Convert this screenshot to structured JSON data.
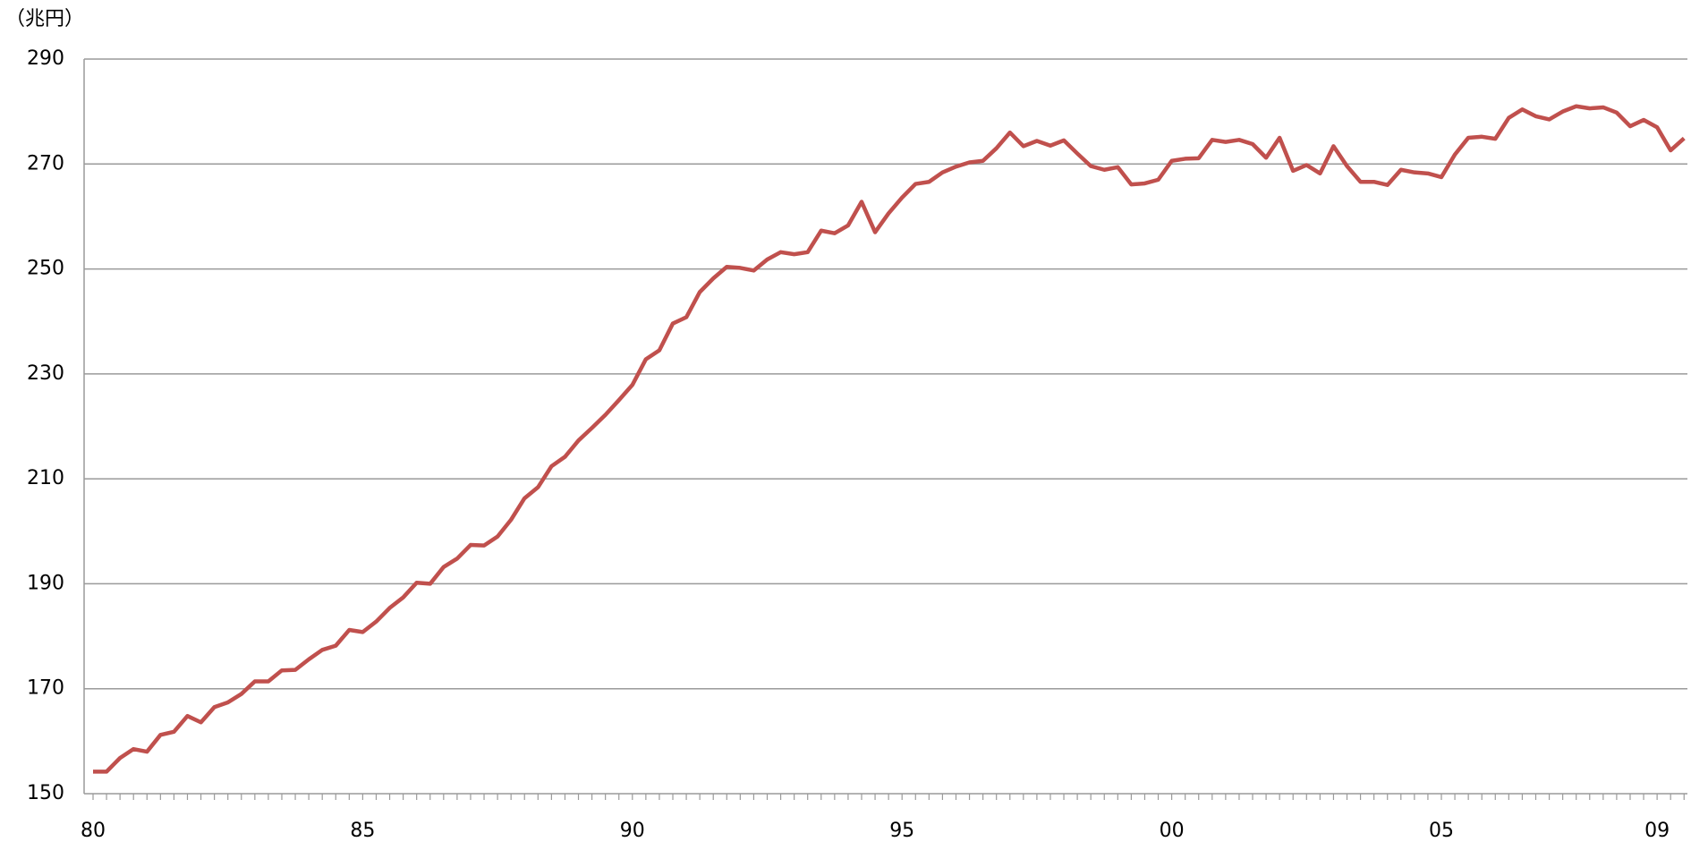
{
  "chart_data": {
    "type": "line",
    "y_label": "（兆円）",
    "categories": [
      "80",
      null,
      null,
      null,
      null,
      null,
      null,
      null,
      null,
      null,
      null,
      null,
      null,
      null,
      null,
      null,
      null,
      null,
      null,
      null,
      "85",
      null,
      null,
      null,
      null,
      null,
      null,
      null,
      null,
      null,
      null,
      null,
      null,
      null,
      null,
      null,
      null,
      null,
      null,
      null,
      "90",
      null,
      null,
      null,
      null,
      null,
      null,
      null,
      null,
      null,
      null,
      null,
      null,
      null,
      null,
      null,
      null,
      null,
      null,
      null,
      "95",
      null,
      null,
      null,
      null,
      null,
      null,
      null,
      null,
      null,
      null,
      null,
      null,
      null,
      null,
      null,
      null,
      null,
      null,
      null,
      "00",
      null,
      null,
      null,
      null,
      null,
      null,
      null,
      null,
      null,
      null,
      null,
      null,
      null,
      null,
      null,
      null,
      null,
      null,
      null,
      "05",
      null,
      null,
      null,
      null,
      null,
      null,
      null,
      null,
      null,
      null,
      null,
      null,
      null,
      null,
      null,
      "09",
      null,
      null
    ],
    "values": [
      154.2,
      154.2,
      156.8,
      158.5,
      158.0,
      161.2,
      161.8,
      164.8,
      163.6,
      166.5,
      167.4,
      169.0,
      171.4,
      171.4,
      173.5,
      173.6,
      175.6,
      177.4,
      178.2,
      181.2,
      180.8,
      182.8,
      185.4,
      187.4,
      190.2,
      190.0,
      193.2,
      194.8,
      197.4,
      197.3,
      199.0,
      202.2,
      206.3,
      208.4,
      212.4,
      214.2,
      217.3,
      219.7,
      222.2,
      225.0,
      227.9,
      232.8,
      234.5,
      239.6,
      240.8,
      245.6,
      248.2,
      250.4,
      250.2,
      249.7,
      251.8,
      253.2,
      252.8,
      253.2,
      257.3,
      256.8,
      258.3,
      262.8,
      257.0,
      260.6,
      263.6,
      266.2,
      266.6,
      268.4,
      269.5,
      270.3,
      270.6,
      273.0,
      276.0,
      273.4,
      274.4,
      273.5,
      274.5,
      272.0,
      269.6,
      268.9,
      269.4,
      266.1,
      266.3,
      267.0,
      270.6,
      271.0,
      271.1,
      274.6,
      274.2,
      274.6,
      273.8,
      271.2,
      275.0,
      268.7,
      269.8,
      268.2,
      273.4,
      269.6,
      266.6,
      266.6,
      266.0,
      268.9,
      268.4,
      268.2,
      267.5,
      271.8,
      275.0,
      275.2,
      274.8,
      278.8,
      280.4,
      279.1,
      278.5,
      280.0,
      281.0,
      280.6,
      280.8,
      279.8,
      277.2,
      278.4,
      277.0,
      272.6,
      274.9
    ],
    "color": "#c0504d",
    "ylim": [
      150,
      290
    ],
    "yticks": [
      150,
      170,
      190,
      210,
      230,
      250,
      270,
      290
    ],
    "grid": true
  }
}
